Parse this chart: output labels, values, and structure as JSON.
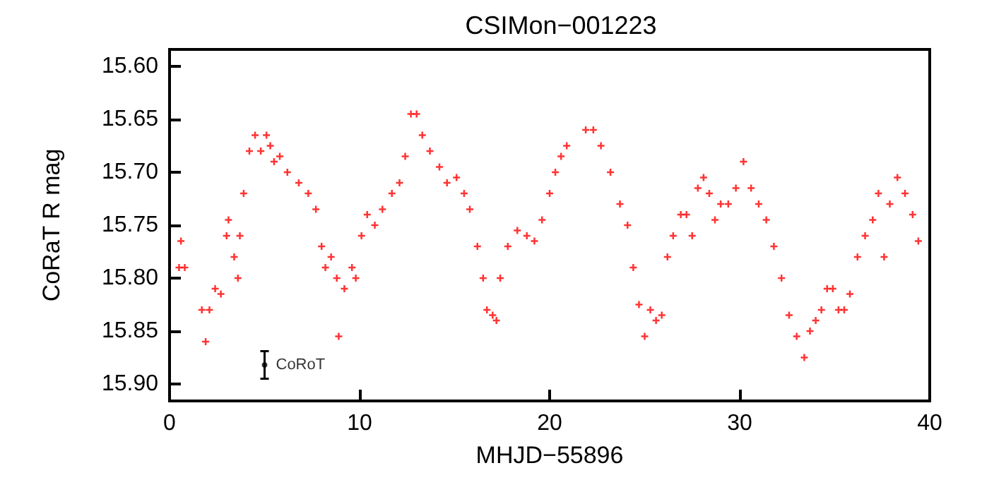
{
  "chart_data": {
    "type": "scatter",
    "title": "CSIMon−001223",
    "xlabel": "MHJD−55896",
    "ylabel": "CoRaT R mag",
    "xlim": [
      0,
      40
    ],
    "xticks": [
      0,
      10,
      20,
      30,
      40
    ],
    "ylim": [
      15.916,
      15.584
    ],
    "yticks": [
      {
        "value": 15.6,
        "label": "15.60"
      },
      {
        "value": 15.65,
        "label": "15.65"
      },
      {
        "value": 15.7,
        "label": "15.70"
      },
      {
        "value": 15.75,
        "label": "15.75"
      },
      {
        "value": 15.8,
        "label": "15.80"
      },
      {
        "value": 15.85,
        "label": "15.85"
      },
      {
        "value": 15.9,
        "label": "15.90"
      }
    ],
    "grid": false,
    "legend": false,
    "marker": "cross",
    "series": [
      {
        "color": "#ff0000",
        "x": [
          0.5,
          0.6,
          0.8,
          1.7,
          1.9,
          2.1,
          2.4,
          2.7,
          3.0,
          3.1,
          3.4,
          3.6,
          3.7,
          3.9,
          4.2,
          4.5,
          4.8,
          5.1,
          5.3,
          5.5,
          5.8,
          6.2,
          6.8,
          7.3,
          7.7,
          8.0,
          8.2,
          8.5,
          8.8,
          8.9,
          9.2,
          9.6,
          9.8,
          10.1,
          10.4,
          10.8,
          11.2,
          11.7,
          12.1,
          12.4,
          12.7,
          13.0,
          13.3,
          13.7,
          14.2,
          14.6,
          15.1,
          15.5,
          15.8,
          16.2,
          16.5,
          16.7,
          17.0,
          17.2,
          17.4,
          17.8,
          18.3,
          18.8,
          19.2,
          19.6,
          20.0,
          20.3,
          20.6,
          20.9,
          21.9,
          22.3,
          22.7,
          23.2,
          23.7,
          24.1,
          24.4,
          24.7,
          25.0,
          25.3,
          25.6,
          25.9,
          26.2,
          26.5,
          26.9,
          27.2,
          27.5,
          27.8,
          28.1,
          28.4,
          28.7,
          29.0,
          29.4,
          29.8,
          30.2,
          30.6,
          31.0,
          31.4,
          31.8,
          32.2,
          32.6,
          33.0,
          33.4,
          33.7,
          34.0,
          34.3,
          34.6,
          34.9,
          35.2,
          35.5,
          35.8,
          36.2,
          36.6,
          37.0,
          37.3,
          37.6,
          37.9,
          38.3,
          38.7,
          39.1,
          39.4
        ],
        "values": [
          15.79,
          15.765,
          15.79,
          15.83,
          15.86,
          15.83,
          15.81,
          15.815,
          15.76,
          15.745,
          15.78,
          15.8,
          15.76,
          15.72,
          15.68,
          15.665,
          15.68,
          15.665,
          15.675,
          15.69,
          15.685,
          15.7,
          15.71,
          15.72,
          15.735,
          15.77,
          15.79,
          15.78,
          15.8,
          15.855,
          15.81,
          15.79,
          15.8,
          15.76,
          15.74,
          15.75,
          15.735,
          15.72,
          15.71,
          15.685,
          15.645,
          15.645,
          15.665,
          15.68,
          15.695,
          15.71,
          15.705,
          15.72,
          15.735,
          15.77,
          15.8,
          15.83,
          15.835,
          15.84,
          15.8,
          15.77,
          15.755,
          15.76,
          15.765,
          15.745,
          15.72,
          15.7,
          15.685,
          15.675,
          15.66,
          15.66,
          15.675,
          15.7,
          15.73,
          15.75,
          15.79,
          15.825,
          15.855,
          15.83,
          15.84,
          15.835,
          15.78,
          15.76,
          15.74,
          15.74,
          15.76,
          15.715,
          15.705,
          15.72,
          15.745,
          15.73,
          15.73,
          15.715,
          15.69,
          15.715,
          15.73,
          15.745,
          15.77,
          15.8,
          15.835,
          15.855,
          15.875,
          15.85,
          15.84,
          15.83,
          15.81,
          15.81,
          15.83,
          15.83,
          15.815,
          15.78,
          15.76,
          15.745,
          15.72,
          15.78,
          15.73,
          15.705,
          15.72,
          15.74,
          15.765
        ]
      },
      {
        "name": "CoRoT",
        "color": "#000000",
        "marker": "circle",
        "x": [
          5
        ],
        "values": [
          15.882
        ],
        "errors": [
          0.013
        ]
      }
    ]
  }
}
